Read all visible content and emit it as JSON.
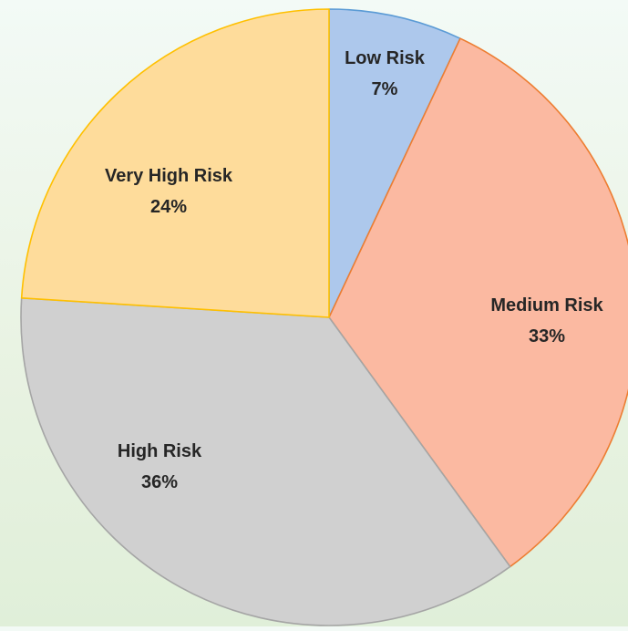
{
  "chart_data": {
    "type": "pie",
    "title": "",
    "slices": [
      {
        "label": "Low Risk",
        "value": 7,
        "display": "7%",
        "fill": "#adc8ec",
        "stroke": "#5b9bd5"
      },
      {
        "label": "Medium Risk",
        "value": 33,
        "display": "33%",
        "fill": "#fbb9a1",
        "stroke": "#ed7d31"
      },
      {
        "label": "High Risk",
        "value": 36,
        "display": "36%",
        "fill": "#d0d0d0",
        "stroke": "#a5a5a5"
      },
      {
        "label": "Very High Risk",
        "value": 24,
        "display": "24%",
        "fill": "#fedc9b",
        "stroke": "#ffc000"
      }
    ],
    "start": "12 o'clock",
    "direction": "clockwise",
    "legend": "none",
    "data_labels": "category name and percentage, inside slices"
  },
  "colors": {
    "background_top": "#f3faf6",
    "background_bottom": "#e0efd9",
    "label_text": "#262626"
  }
}
